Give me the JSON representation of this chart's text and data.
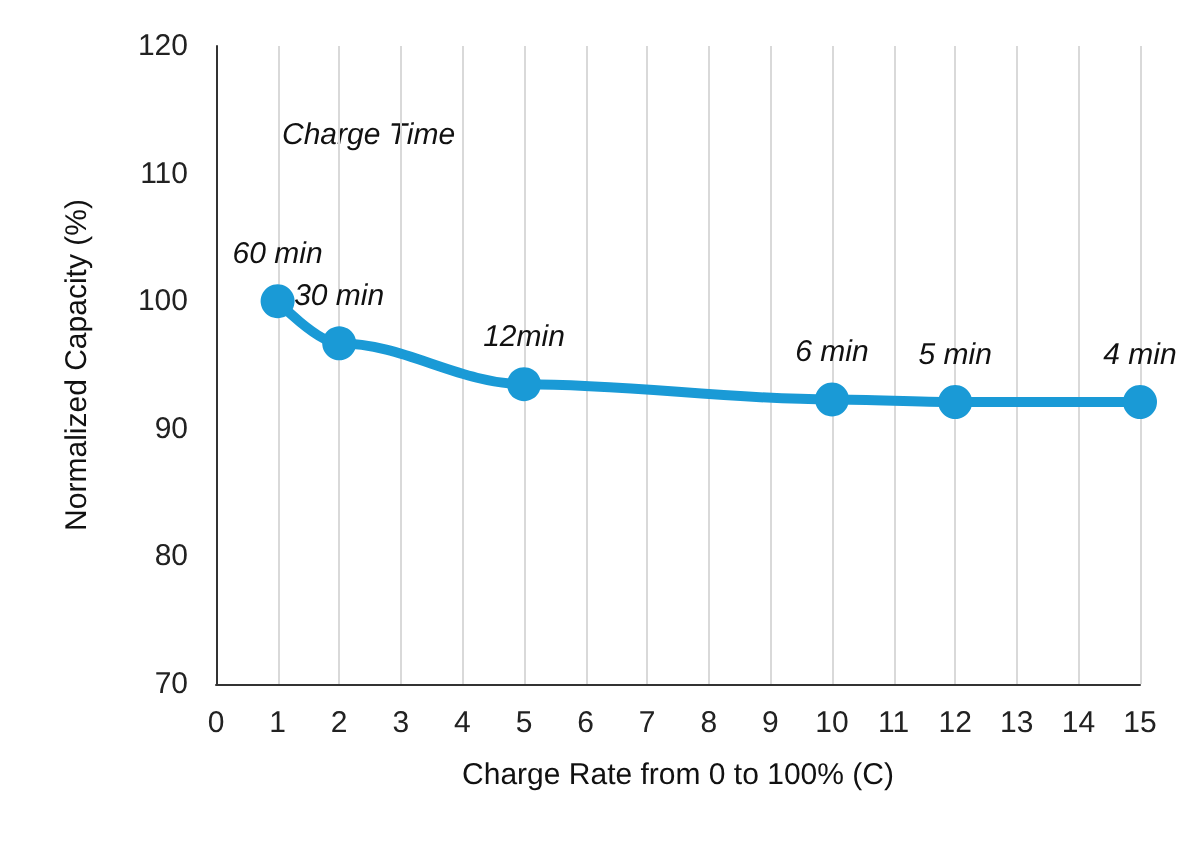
{
  "chart_data": {
    "type": "line",
    "xlabel": "Charge Rate from 0 to 100% (C)",
    "ylabel": "Normalized Capacity (%)",
    "x": [
      1,
      2,
      5,
      10,
      12,
      15
    ],
    "series": [
      {
        "color": "#1a9ad6",
        "values": [
          100,
          96.7,
          93.5,
          92.3,
          92.1,
          92.1
        ]
      }
    ],
    "xlim": [
      0,
      15
    ],
    "xticks": [
      0,
      1,
      2,
      3,
      4,
      5,
      6,
      7,
      8,
      9,
      10,
      11,
      12,
      13,
      14,
      15
    ],
    "ylim": [
      70,
      120
    ],
    "yticks": [
      70,
      80,
      90,
      100,
      110,
      120
    ],
    "grid": "x",
    "marker": "circle",
    "line_style": "solid",
    "annotations": [
      "Charge Time",
      {
        "text": "60 min",
        "x": 1,
        "y": 100
      },
      {
        "text": "30 min",
        "x": 2,
        "y": 96.7
      },
      {
        "text": "12min",
        "x": 5,
        "y": 93.5
      },
      {
        "text": "6 min",
        "x": 10,
        "y": 92.3
      },
      {
        "text": "5 min",
        "x": 12,
        "y": 92.1
      },
      {
        "text": "4 min",
        "x": 15,
        "y": 92.1
      }
    ]
  }
}
